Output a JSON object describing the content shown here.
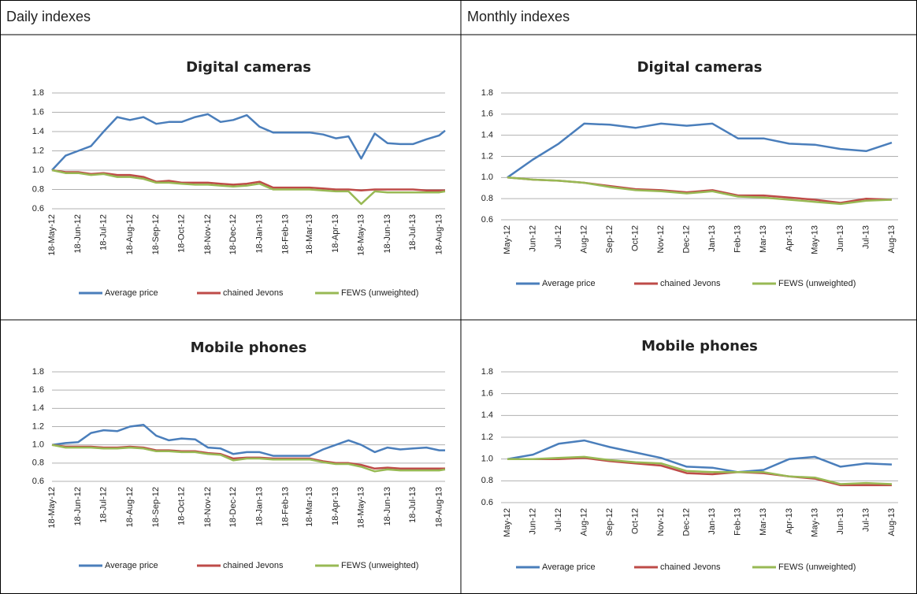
{
  "table": {
    "headers": [
      "Daily indexes",
      "Monthly indexes"
    ]
  },
  "chart_data": [
    {
      "type": "line",
      "title": "Digital cameras",
      "x": [
        "18-May-12",
        "3-Jun-12",
        "18-Jun-12",
        "3-Jul-12",
        "18-Jul-12",
        "3-Aug-12",
        "18-Aug-12",
        "3-Sep-12",
        "18-Sep-12",
        "3-Oct-12",
        "18-Oct-12",
        "3-Nov-12",
        "18-Nov-12",
        "3-Dec-12",
        "18-Dec-12",
        "3-Jan-13",
        "18-Jan-13",
        "3-Feb-13",
        "18-Feb-13",
        "3-Mar-13",
        "18-Mar-13",
        "3-Apr-13",
        "18-Apr-13",
        "3-May-13",
        "18-May-13",
        "3-Jun-13",
        "18-Jun-13",
        "3-Jul-13",
        "18-Jul-13",
        "3-Aug-13",
        "18-Aug-13",
        "25-Aug-13"
      ],
      "xlim": [
        "18-May-12",
        "25-Aug-13"
      ],
      "xticks": [
        "18-May-12",
        "18-Jun-12",
        "18-Jul-12",
        "18-Aug-12",
        "18-Sep-12",
        "18-Oct-12",
        "18-Nov-12",
        "18-Dec-12",
        "18-Jan-13",
        "18-Feb-13",
        "18-Mar-13",
        "18-Apr-13",
        "18-May-13",
        "18-Jun-13",
        "18-Jul-13",
        "18-Aug-13"
      ],
      "ylim": [
        0.6,
        1.8
      ],
      "yticks": [
        0.6,
        0.8,
        {
          "value": 1,
          "label": "1.0"
        },
        1.2,
        1.4,
        1.6,
        1.8
      ],
      "grid": true,
      "series": [
        {
          "name": "Average price",
          "color": "#4a7ebb",
          "values": [
            1.0,
            1.15,
            1.2,
            1.25,
            1.4,
            1.55,
            1.52,
            1.55,
            1.48,
            1.5,
            1.5,
            1.55,
            1.58,
            1.5,
            1.52,
            1.57,
            1.45,
            1.39,
            1.39,
            1.39,
            1.39,
            1.37,
            1.33,
            1.35,
            1.12,
            1.38,
            1.28,
            1.27,
            1.27,
            1.32,
            1.36,
            1.41
          ]
        },
        {
          "name": "chained Jevons",
          "color": "#be4b48",
          "values": [
            1.0,
            0.98,
            0.98,
            0.96,
            0.97,
            0.95,
            0.95,
            0.93,
            0.88,
            0.89,
            0.87,
            0.87,
            0.87,
            0.86,
            0.85,
            0.86,
            0.88,
            0.82,
            0.82,
            0.82,
            0.82,
            0.81,
            0.8,
            0.8,
            0.79,
            0.8,
            0.8,
            0.8,
            0.8,
            0.79,
            0.79,
            0.79
          ]
        },
        {
          "name": "FEWS (unweighted)",
          "color": "#98b954",
          "values": [
            1.0,
            0.97,
            0.97,
            0.95,
            0.96,
            0.93,
            0.93,
            0.91,
            0.87,
            0.87,
            0.86,
            0.85,
            0.85,
            0.84,
            0.83,
            0.84,
            0.86,
            0.8,
            0.8,
            0.8,
            0.8,
            0.79,
            0.78,
            0.78,
            0.65,
            0.78,
            0.77,
            0.77,
            0.77,
            0.77,
            0.77,
            0.78
          ]
        }
      ]
    },
    {
      "type": "line",
      "title": "Digital cameras",
      "categories": [
        "May-12",
        "Jun-12",
        "Jul-12",
        "Aug-12",
        "Sep-12",
        "Oct-12",
        "Nov-12",
        "Dec-12",
        "Jan-13",
        "Feb-13",
        "Mar-13",
        "Apr-13",
        "May-13",
        "Jun-13",
        "Jul-13",
        "Aug-13"
      ],
      "ylim": [
        0.6,
        1.8
      ],
      "yticks": [
        0.6,
        0.8,
        {
          "value": 1,
          "label": "1.0"
        },
        1.2,
        1.4,
        1.6,
        1.8
      ],
      "grid": true,
      "series": [
        {
          "name": "Average price",
          "color": "#4a7ebb",
          "values": [
            1.0,
            1.17,
            1.32,
            1.51,
            1.5,
            1.47,
            1.51,
            1.49,
            1.51,
            1.37,
            1.37,
            1.32,
            1.31,
            1.27,
            1.25,
            1.33
          ]
        },
        {
          "name": "chained Jevons",
          "color": "#be4b48",
          "values": [
            1.0,
            0.98,
            0.97,
            0.95,
            0.92,
            0.89,
            0.88,
            0.86,
            0.88,
            0.83,
            0.83,
            0.81,
            0.79,
            0.76,
            0.8,
            0.79
          ]
        },
        {
          "name": "FEWS (unweighted)",
          "color": "#98b954",
          "values": [
            1.0,
            0.98,
            0.97,
            0.95,
            0.91,
            0.88,
            0.87,
            0.85,
            0.87,
            0.82,
            0.81,
            0.79,
            0.77,
            0.75,
            0.78,
            0.79
          ]
        }
      ]
    },
    {
      "type": "line",
      "title": "Mobile phones",
      "x": [
        "18-May-12",
        "3-Jun-12",
        "18-Jun-12",
        "3-Jul-12",
        "18-Jul-12",
        "3-Aug-12",
        "18-Aug-12",
        "3-Sep-12",
        "18-Sep-12",
        "3-Oct-12",
        "18-Oct-12",
        "3-Nov-12",
        "18-Nov-12",
        "3-Dec-12",
        "18-Dec-12",
        "3-Jan-13",
        "18-Jan-13",
        "3-Feb-13",
        "18-Feb-13",
        "3-Mar-13",
        "18-Mar-13",
        "3-Apr-13",
        "18-Apr-13",
        "3-May-13",
        "18-May-13",
        "3-Jun-13",
        "18-Jun-13",
        "3-Jul-13",
        "18-Jul-13",
        "3-Aug-13",
        "18-Aug-13",
        "25-Aug-13"
      ],
      "xlim": [
        "18-May-12",
        "25-Aug-13"
      ],
      "xticks": [
        "18-May-12",
        "18-Jun-12",
        "18-Jul-12",
        "18-Aug-12",
        "18-Sep-12",
        "18-Oct-12",
        "18-Nov-12",
        "18-Dec-12",
        "18-Jan-13",
        "18-Feb-13",
        "18-Mar-13",
        "18-Apr-13",
        "18-May-13",
        "18-Jun-13",
        "18-Jul-13",
        "18-Aug-13"
      ],
      "ylim": [
        0.6,
        1.8
      ],
      "yticks": [
        0.6,
        0.8,
        {
          "value": 1,
          "label": "1.0"
        },
        1.2,
        1.4,
        1.6,
        1.8
      ],
      "grid": true,
      "series": [
        {
          "name": "Average price",
          "color": "#4a7ebb",
          "values": [
            1.0,
            1.02,
            1.03,
            1.13,
            1.16,
            1.15,
            1.2,
            1.22,
            1.1,
            1.05,
            1.07,
            1.06,
            0.97,
            0.96,
            0.9,
            0.92,
            0.92,
            0.88,
            0.88,
            0.88,
            0.88,
            0.95,
            1.0,
            1.05,
            1.0,
            0.92,
            0.97,
            0.95,
            0.96,
            0.97,
            0.94,
            0.94
          ]
        },
        {
          "name": "chained Jevons",
          "color": "#be4b48",
          "values": [
            1.0,
            0.98,
            0.98,
            0.98,
            0.97,
            0.97,
            0.98,
            0.97,
            0.94,
            0.94,
            0.93,
            0.93,
            0.91,
            0.9,
            0.85,
            0.86,
            0.86,
            0.85,
            0.85,
            0.85,
            0.85,
            0.82,
            0.8,
            0.8,
            0.78,
            0.74,
            0.75,
            0.74,
            0.74,
            0.74,
            0.74,
            0.74
          ]
        },
        {
          "name": "FEWS (unweighted)",
          "color": "#98b954",
          "values": [
            1.0,
            0.97,
            0.97,
            0.97,
            0.96,
            0.96,
            0.97,
            0.96,
            0.93,
            0.93,
            0.92,
            0.92,
            0.9,
            0.89,
            0.83,
            0.85,
            0.85,
            0.84,
            0.84,
            0.84,
            0.84,
            0.81,
            0.79,
            0.79,
            0.76,
            0.71,
            0.73,
            0.72,
            0.72,
            0.72,
            0.72,
            0.73
          ]
        }
      ]
    },
    {
      "type": "line",
      "title": "Mobile phones",
      "categories": [
        "May-12",
        "Jun-12",
        "Jul-12",
        "Aug-12",
        "Sep-12",
        "Oct-12",
        "Nov-12",
        "Dec-12",
        "Jan-13",
        "Feb-13",
        "Mar-13",
        "Apr-13",
        "May-13",
        "Jun-13",
        "Jul-13",
        "Aug-13"
      ],
      "ylim": [
        0.6,
        1.8
      ],
      "yticks": [
        0.6,
        0.8,
        {
          "value": 1,
          "label": "1.0"
        },
        1.2,
        1.4,
        1.6,
        1.8
      ],
      "grid": true,
      "series": [
        {
          "name": "Average price",
          "color": "#4a7ebb",
          "values": [
            1.0,
            1.04,
            1.14,
            1.17,
            1.11,
            1.06,
            1.01,
            0.93,
            0.92,
            0.88,
            0.9,
            1.0,
            1.02,
            0.93,
            0.96,
            0.95
          ]
        },
        {
          "name": "chained Jevons",
          "color": "#be4b48",
          "values": [
            1.0,
            1.0,
            1.0,
            1.01,
            0.98,
            0.96,
            0.94,
            0.87,
            0.86,
            0.88,
            0.87,
            0.84,
            0.82,
            0.76,
            0.76,
            0.76
          ]
        },
        {
          "name": "FEWS (unweighted)",
          "color": "#98b954",
          "values": [
            1.0,
            1.0,
            1.01,
            1.02,
            0.99,
            0.97,
            0.96,
            0.89,
            0.88,
            0.88,
            0.88,
            0.84,
            0.83,
            0.77,
            0.78,
            0.77
          ]
        }
      ]
    }
  ]
}
